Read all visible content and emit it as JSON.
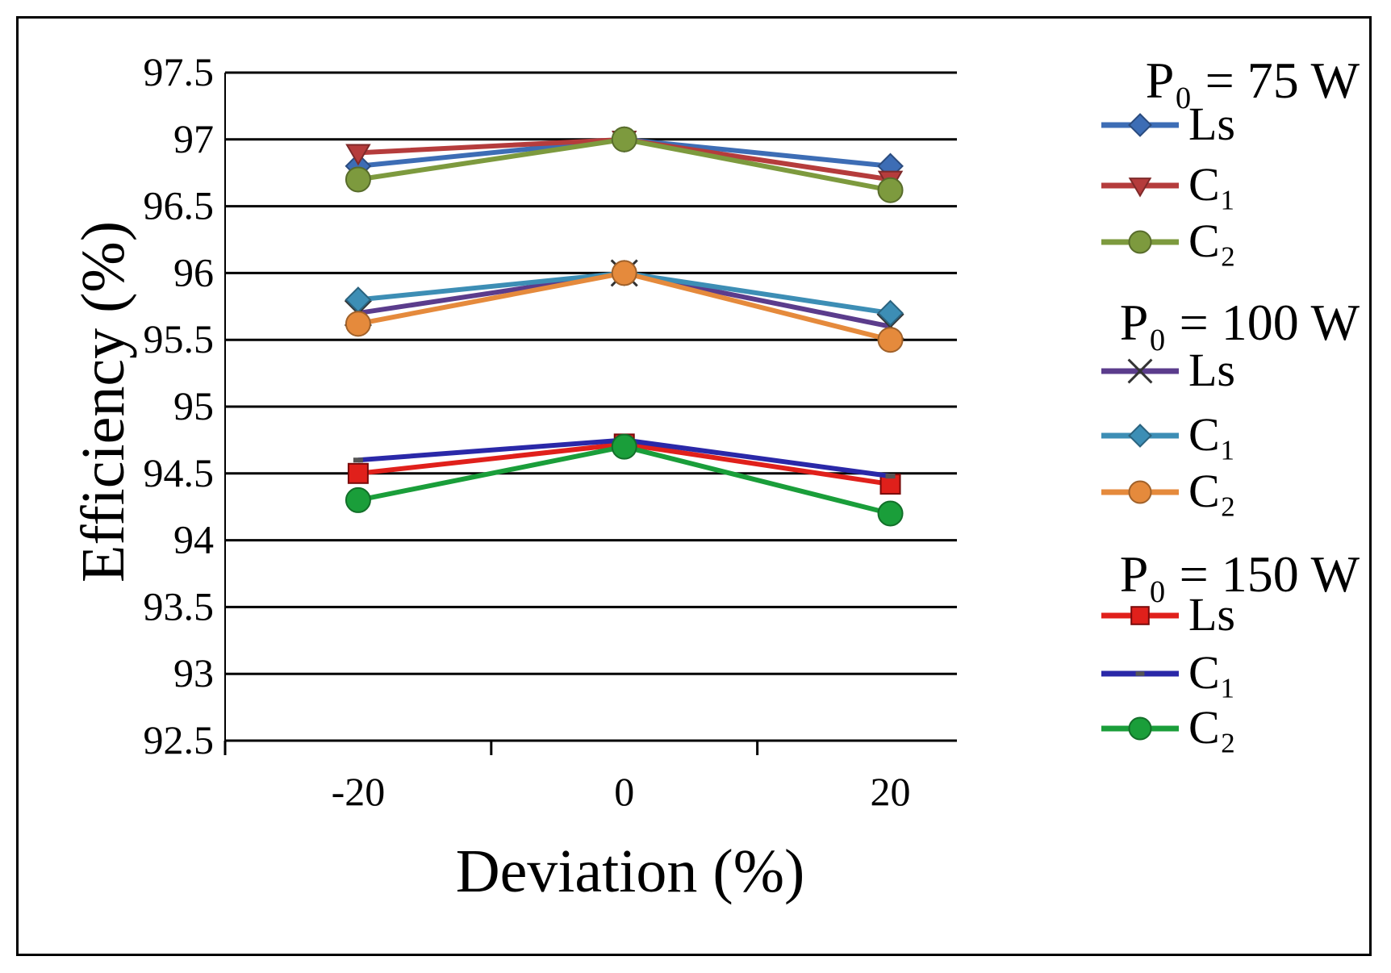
{
  "chart_data": {
    "type": "line",
    "title": "",
    "xlabel": "Deviation (%)",
    "ylabel": "Efficiency (%)",
    "x": [
      -20,
      0,
      20
    ],
    "x_tick_labels": [
      "-20",
      "0",
      "20"
    ],
    "xlim": [
      -30,
      25
    ],
    "ylim": [
      92.5,
      97.5
    ],
    "y_ticks": [
      92.5,
      93,
      93.5,
      94,
      94.5,
      95,
      95.5,
      96,
      96.5,
      97,
      97.5
    ],
    "y_tick_labels": [
      "92.5",
      "93",
      "93.5",
      "94",
      "94.5",
      "95",
      "95.5",
      "96",
      "96.5",
      "97",
      "97.5"
    ],
    "grid": "horizontal",
    "legend_position": "right",
    "groups": [
      {
        "label": "P₀ = 75 W",
        "series": [
          {
            "name": "Ls",
            "values": [
              96.8,
              97.0,
              96.8
            ],
            "color": "#3d6db5",
            "marker": "diamond"
          },
          {
            "name": "C₁",
            "values": [
              96.9,
              97.0,
              96.7
            ],
            "color": "#b53c3c",
            "marker": "triangle"
          },
          {
            "name": "C₂",
            "values": [
              96.7,
              97.0,
              96.62
            ],
            "color": "#7d9a3e",
            "marker": "circle"
          }
        ]
      },
      {
        "label": "P₀ = 100 W",
        "series": [
          {
            "name": "Ls",
            "values": [
              95.7,
              96.0,
              95.6
            ],
            "color": "#5b3c8c",
            "marker": "x"
          },
          {
            "name": "C₁",
            "values": [
              95.8,
              96.0,
              95.7
            ],
            "color": "#3d8eb5",
            "marker": "diamond"
          },
          {
            "name": "C₂",
            "values": [
              95.62,
              96.0,
              95.5
            ],
            "color": "#e58a3c",
            "marker": "circle"
          }
        ]
      },
      {
        "label": "P₀ = 150 W",
        "series": [
          {
            "name": "Ls",
            "values": [
              94.5,
              94.72,
              94.42
            ],
            "color": "#e0201b",
            "marker": "square"
          },
          {
            "name": "C₁",
            "values": [
              94.6,
              94.75,
              94.48
            ],
            "color": "#2a28a8",
            "marker": "dash"
          },
          {
            "name": "C₂",
            "values": [
              94.3,
              94.7,
              94.2
            ],
            "color": "#1a9e3a",
            "marker": "circle"
          }
        ]
      }
    ]
  }
}
